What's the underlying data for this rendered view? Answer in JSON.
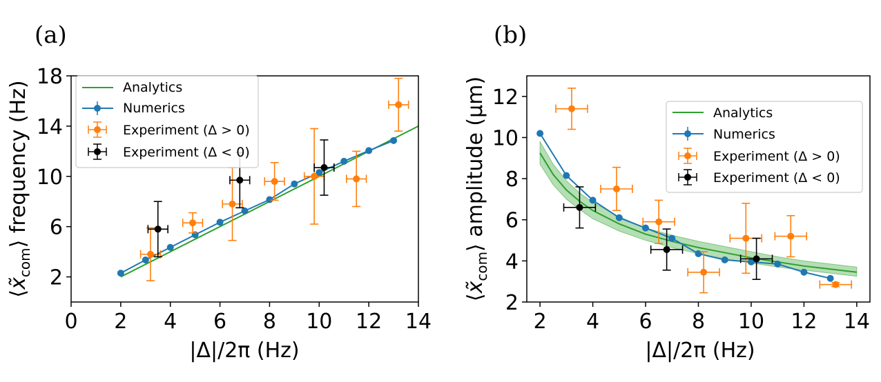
{
  "chart_data": [
    {
      "type": "line",
      "panel_label": "(a)",
      "xlabel": "|Δ|/2π (Hz)",
      "ylabel_prefix": "⟨",
      "ylabel_symbol": "x̃",
      "ylabel_subscript": "com",
      "ylabel_suffix": "⟩ frequency (Hz)",
      "xlim": [
        0,
        14
      ],
      "ylim": [
        0,
        18
      ],
      "xticks": [
        0,
        2,
        4,
        6,
        8,
        10,
        12,
        14
      ],
      "yticks": [
        2,
        6,
        10,
        14,
        18
      ],
      "legend_position": "top-left",
      "series": [
        {
          "name": "Analytics",
          "kind": "line",
          "color": "#2ca02c",
          "x": [
            2,
            14
          ],
          "y": [
            2.0,
            14.0
          ]
        },
        {
          "name": "Numerics",
          "kind": "line-markers",
          "color": "#1f77b4",
          "x": [
            2,
            3,
            4,
            5,
            6,
            7,
            8,
            9,
            10,
            11,
            12,
            13
          ],
          "y": [
            2.3,
            3.35,
            4.35,
            5.35,
            6.35,
            7.25,
            8.15,
            9.4,
            10.3,
            11.2,
            12.05,
            12.85
          ]
        },
        {
          "name": "Experiment (Δ > 0)",
          "kind": "errorbar",
          "color": "#ff7f0e",
          "x": [
            3.2,
            4.9,
            6.5,
            8.2,
            9.8,
            11.5,
            13.2
          ],
          "y": [
            3.8,
            6.3,
            7.8,
            9.6,
            10.0,
            9.8,
            15.7
          ],
          "xerr": [
            0.4,
            0.4,
            0.4,
            0.4,
            0.4,
            0.4,
            0.4
          ],
          "yerr": [
            2.1,
            0.8,
            2.9,
            1.5,
            3.8,
            2.2,
            2.1
          ]
        },
        {
          "name": "Experiment (Δ < 0)",
          "kind": "errorbar",
          "color": "#000000",
          "x": [
            3.5,
            6.8,
            10.2
          ],
          "y": [
            5.8,
            9.7,
            10.7
          ],
          "xerr": [
            0.4,
            0.4,
            0.4
          ],
          "yerr": [
            2.2,
            2.2,
            2.2
          ]
        }
      ]
    },
    {
      "type": "line",
      "panel_label": "(b)",
      "xlabel": "|Δ|/2π (Hz)",
      "ylabel_prefix": "⟨",
      "ylabel_symbol": "x̃",
      "ylabel_subscript": "com",
      "ylabel_suffix": "⟩ amplitude (μm)",
      "xlim": [
        1.5,
        14.5
      ],
      "ylim": [
        2,
        13
      ],
      "xticks": [
        2,
        4,
        6,
        8,
        10,
        12,
        14
      ],
      "yticks": [
        2,
        4,
        6,
        8,
        10,
        12
      ],
      "legend_position": "top-right",
      "series": [
        {
          "name": "Analytics",
          "kind": "band-line",
          "color": "#2ca02c",
          "x": [
            2,
            2.5,
            3,
            3.5,
            4,
            5,
            6,
            7,
            8,
            9,
            10,
            11,
            12,
            13,
            14
          ],
          "y": [
            9.25,
            8.2,
            7.45,
            6.9,
            6.45,
            5.8,
            5.3,
            4.95,
            4.65,
            4.4,
            4.15,
            3.95,
            3.75,
            3.6,
            3.45
          ],
          "lower": [
            8.7,
            7.7,
            7.0,
            6.5,
            6.05,
            5.45,
            5.0,
            4.65,
            4.35,
            4.1,
            3.9,
            3.7,
            3.55,
            3.4,
            3.25
          ],
          "upper": [
            9.8,
            8.7,
            7.9,
            7.3,
            6.85,
            6.15,
            5.6,
            5.25,
            4.95,
            4.7,
            4.45,
            4.2,
            4.0,
            3.85,
            3.7
          ]
        },
        {
          "name": "Numerics",
          "kind": "line-markers",
          "color": "#1f77b4",
          "x": [
            2,
            3,
            4,
            5,
            6,
            7,
            8,
            9,
            10,
            11,
            12,
            13
          ],
          "y": [
            10.2,
            8.15,
            6.95,
            6.1,
            5.6,
            5.1,
            4.35,
            4.05,
            3.95,
            3.85,
            3.45,
            3.15
          ]
        },
        {
          "name": "Experiment (Δ > 0)",
          "kind": "errorbar",
          "color": "#ff7f0e",
          "x": [
            3.2,
            4.9,
            6.5,
            8.2,
            9.8,
            11.5,
            13.2
          ],
          "y": [
            11.4,
            7.5,
            5.9,
            3.45,
            5.1,
            5.2,
            2.85
          ],
          "xerr": [
            0.6,
            0.6,
            0.6,
            0.6,
            0.6,
            0.6,
            0.6
          ],
          "yerr": [
            1.0,
            1.05,
            1.05,
            1.0,
            1.7,
            1.0,
            0.1
          ]
        },
        {
          "name": "Experiment (Δ < 0)",
          "kind": "errorbar",
          "color": "#000000",
          "x": [
            3.5,
            6.8,
            10.2
          ],
          "y": [
            6.6,
            4.55,
            4.1
          ],
          "xerr": [
            0.6,
            0.6,
            0.6
          ],
          "yerr": [
            1.0,
            1.0,
            1.0
          ]
        }
      ]
    }
  ]
}
